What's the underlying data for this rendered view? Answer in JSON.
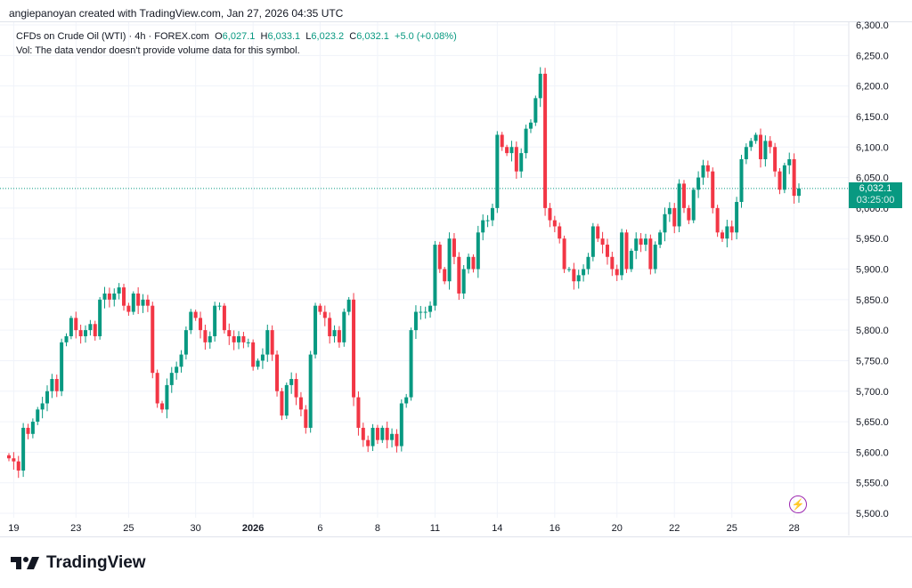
{
  "credit": "angiepanoyan created with TradingView.com, Jan 27, 2026 04:35 UTC",
  "legend": {
    "symbol": "CFDs on Crude Oil (WTI) · 4h · FOREX.com",
    "o_label": "O",
    "o": "6,027.1",
    "h_label": "H",
    "h": "6,033.1",
    "l_label": "L",
    "l": "6,023.2",
    "c_label": "C",
    "c": "6,032.1",
    "change": "+5.0 (+0.08%)",
    "vol": "Vol: The data vendor doesn't provide volume data for this symbol."
  },
  "price_tag": {
    "price": "6,032.1",
    "countdown": "03:25:00"
  },
  "logo": "TradingView",
  "colors": {
    "up": "#089981",
    "down": "#f23645",
    "grid": "#f0f3fa"
  },
  "chart_data": {
    "type": "candlestick",
    "ylim": [
      5500,
      6300
    ],
    "y_ticks": [
      "6,300.0",
      "6,250.0",
      "6,200.0",
      "6,150.0",
      "6,100.0",
      "6,050.0",
      "6,000.0",
      "5,950.0",
      "5,900.0",
      "5,850.0",
      "5,800.0",
      "5,750.0",
      "5,700.0",
      "5,650.0",
      "5,600.0",
      "5,550.0",
      "5,500.0"
    ],
    "x_ticks": [
      {
        "label": "19",
        "i": 1
      },
      {
        "label": "23",
        "i": 14
      },
      {
        "label": "25",
        "i": 25
      },
      {
        "label": "30",
        "i": 39
      },
      {
        "label": "2026",
        "i": 51,
        "bold": true
      },
      {
        "label": "6",
        "i": 65
      },
      {
        "label": "8",
        "i": 77
      },
      {
        "label": "11",
        "i": 89
      },
      {
        "label": "14",
        "i": 102
      },
      {
        "label": "16",
        "i": 114
      },
      {
        "label": "20",
        "i": 127
      },
      {
        "label": "22",
        "i": 139
      },
      {
        "label": "25",
        "i": 151
      },
      {
        "label": "28",
        "i": 164
      }
    ],
    "last_close": 6032.1,
    "closes": [
      5590,
      5585,
      5570,
      5640,
      5630,
      5650,
      5670,
      5680,
      5700,
      5720,
      5700,
      5780,
      5790,
      5820,
      5800,
      5790,
      5800,
      5810,
      5790,
      5850,
      5860,
      5850,
      5860,
      5870,
      5840,
      5830,
      5860,
      5840,
      5850,
      5840,
      5730,
      5680,
      5670,
      5710,
      5730,
      5740,
      5760,
      5800,
      5830,
      5820,
      5800,
      5780,
      5790,
      5840,
      5840,
      5800,
      5790,
      5780,
      5790,
      5780,
      5780,
      5740,
      5750,
      5760,
      5800,
      5760,
      5700,
      5660,
      5710,
      5720,
      5690,
      5670,
      5640,
      5760,
      5840,
      5830,
      5820,
      5790,
      5800,
      5780,
      5830,
      5850,
      5690,
      5640,
      5620,
      5610,
      5640,
      5620,
      5640,
      5620,
      5630,
      5610,
      5680,
      5690,
      5800,
      5830,
      5830,
      5830,
      5840,
      5940,
      5900,
      5880,
      5950,
      5920,
      5860,
      5900,
      5920,
      5900,
      5960,
      5980,
      5980,
      6000,
      6120,
      6100,
      6090,
      6100,
      6060,
      6090,
      6130,
      6140,
      6180,
      6220,
      6000,
      5980,
      5970,
      5950,
      5900,
      5900,
      5880,
      5890,
      5900,
      5920,
      5970,
      5950,
      5940,
      5920,
      5900,
      5890,
      5960,
      5900,
      5930,
      5950,
      5940,
      5950,
      5900,
      5940,
      5960,
      5990,
      6000,
      5970,
      6040,
      6000,
      5980,
      6030,
      6050,
      6070,
      6060,
      6000,
      5960,
      5950,
      5970,
      5960,
      6010,
      6080,
      6100,
      6110,
      6120,
      6080,
      6110,
      6100,
      6060,
      6030,
      6070,
      6080,
      6020,
      6032.1
    ]
  }
}
